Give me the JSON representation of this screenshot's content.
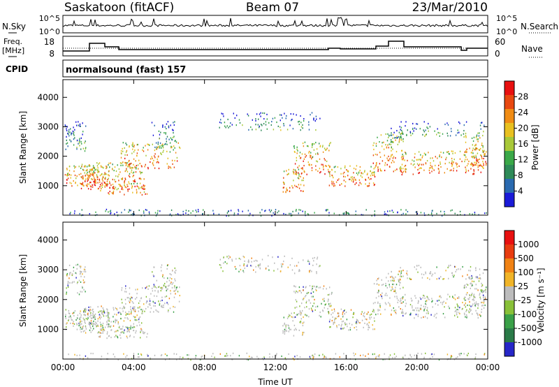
{
  "header": {
    "station": "Saskatoon (fitACF)",
    "beam": "Beam 07",
    "date": "23/Mar/2010"
  },
  "noise_panel": {
    "left_label": "N.Sky",
    "right_label": "N.Search",
    "left_ticks": [
      "10^5",
      "10^0"
    ],
    "right_ticks": [
      "10^5",
      "10^0"
    ]
  },
  "freq_panel": {
    "left_label_1": "Freq.",
    "left_label_2": "[MHz]",
    "left_ticks": [
      "18",
      "8"
    ],
    "right_label": "Nave",
    "right_ticks": [
      "60",
      "0"
    ]
  },
  "cpid": {
    "label": "CPID",
    "value": "normalsound (fast) 157"
  },
  "colors": {
    "power": [
      "#1a1ad8",
      "#2a6ab0",
      "#2e8a58",
      "#3aa848",
      "#a8c838",
      "#e8c020",
      "#f08c14",
      "#e84810",
      "#e81010"
    ],
    "velocity": [
      "#2626c8",
      "#2a7a48",
      "#3aa048",
      "#88c038",
      "#bcbcbc",
      "#f0b428",
      "#f08214",
      "#e83c10",
      "#e81010"
    ]
  },
  "chart_data": [
    {
      "type": "heatmap",
      "name": "power",
      "ylabel": "Slant Range [km]",
      "yticks": [
        "4000",
        "3000",
        "2000",
        "1000"
      ],
      "ylim": [
        0,
        4600
      ],
      "xticks": [
        "00:00",
        "04:00",
        "08:00",
        "12:00",
        "16:00",
        "20:00",
        "00:00"
      ],
      "colorbar_label": "Power [dB]",
      "colorbar_ticks": [
        "28",
        "24",
        "20",
        "16",
        "12",
        "8",
        "4"
      ],
      "colorbar_range": [
        0,
        32
      ]
    },
    {
      "type": "heatmap",
      "name": "velocity",
      "ylabel": "Slant Range [km]",
      "yticks": [
        "4000",
        "3000",
        "2000",
        "1000"
      ],
      "ylim": [
        0,
        4600
      ],
      "xticks": [
        "00:00",
        "04:00",
        "08:00",
        "12:00",
        "16:00",
        "20:00",
        "00:00"
      ],
      "xlabel": "Time UT",
      "colorbar_label": "Velocity [m s⁻¹]",
      "colorbar_ticks": [
        "1000",
        "500",
        "100",
        "25",
        "-25",
        "-100",
        "-500",
        "-1000"
      ]
    }
  ]
}
